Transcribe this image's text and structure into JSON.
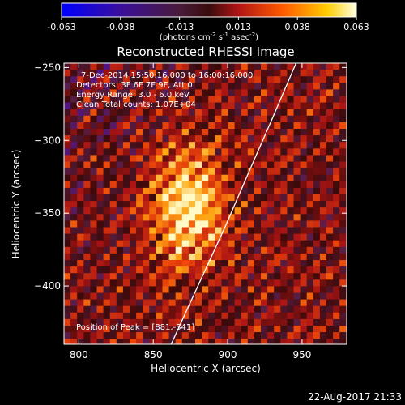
{
  "chart_data": {
    "type": "heatmap",
    "title": "Reconstructed RHESSI Image",
    "xlabel": "Heliocentric X (arcsec)",
    "ylabel": "Heliocentric Y (arcsec)",
    "xlim": [
      790,
      980
    ],
    "ylim": [
      -440,
      -247
    ],
    "xticks": [
      800,
      850,
      900,
      950
    ],
    "yticks": [
      -250,
      -300,
      -350,
      -400
    ],
    "colorbar": {
      "min": -0.063,
      "max": 0.063,
      "ticks": [
        "-0.063",
        "-0.038",
        "-0.013",
        "0.013",
        "0.038",
        "0.063"
      ],
      "units_prefix": "(photons cm",
      "units_exp1": "-2",
      "units_mid": " s",
      "units_exp2": "-1",
      "units_mid2": " asec",
      "units_exp3": "-2",
      "units_suffix": ")"
    },
    "annotations": {
      "date_range": "7-Dec-2014 15:50:16.000 to 16:00:16.000",
      "detectors": "Detectors: 3F 6F 7F 9F, Att 0",
      "energy_range": "Energy Range: 3.0 - 6.0 keV",
      "clean_counts": "Clean    Total counts: 1.07E+04",
      "peak": "Position of Peak = [881,-341]"
    },
    "peak_position": [
      881,
      -341
    ],
    "limb_curve": [
      [
        862,
        -440
      ],
      [
        880,
        -400
      ],
      [
        898,
        -360
      ],
      [
        915,
        -320
      ],
      [
        930,
        -285
      ],
      [
        946,
        -247
      ]
    ],
    "grid": false
  },
  "footer": {
    "timestamp": "22-Aug-2017 21:33"
  }
}
